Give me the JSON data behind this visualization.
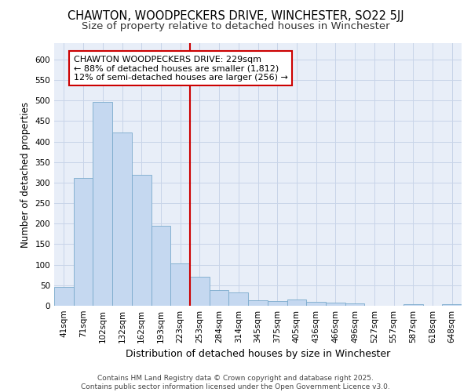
{
  "title1": "CHAWTON, WOODPECKERS DRIVE, WINCHESTER, SO22 5JJ",
  "title2": "Size of property relative to detached houses in Winchester",
  "xlabel": "Distribution of detached houses by size in Winchester",
  "ylabel": "Number of detached properties",
  "categories": [
    "41sqm",
    "71sqm",
    "102sqm",
    "132sqm",
    "162sqm",
    "193sqm",
    "223sqm",
    "253sqm",
    "284sqm",
    "314sqm",
    "345sqm",
    "375sqm",
    "405sqm",
    "436sqm",
    "466sqm",
    "496sqm",
    "527sqm",
    "557sqm",
    "587sqm",
    "618sqm",
    "648sqm"
  ],
  "values": [
    46,
    312,
    497,
    423,
    319,
    195,
    104,
    70,
    38,
    33,
    13,
    12,
    15,
    10,
    7,
    5,
    0,
    0,
    4,
    0,
    4
  ],
  "bar_color": "#c5d8f0",
  "bar_edgecolor": "#7aaacc",
  "grid_color": "#c8d4e8",
  "background_color": "#e8eef8",
  "vline_x_index": 7,
  "vline_color": "#cc0000",
  "annotation_text": "CHAWTON WOODPECKERS DRIVE: 229sqm\n← 88% of detached houses are smaller (1,812)\n12% of semi-detached houses are larger (256) →",
  "annotation_box_edgecolor": "#cc0000",
  "footer_text": "Contains HM Land Registry data © Crown copyright and database right 2025.\nContains public sector information licensed under the Open Government Licence v3.0.",
  "ylim": [
    0,
    640
  ],
  "yticks": [
    0,
    50,
    100,
    150,
    200,
    250,
    300,
    350,
    400,
    450,
    500,
    550,
    600
  ],
  "title1_fontsize": 10.5,
  "title2_fontsize": 9.5,
  "xlabel_fontsize": 9,
  "ylabel_fontsize": 8.5,
  "tick_fontsize": 7.5,
  "annotation_fontsize": 8,
  "footer_fontsize": 6.5
}
